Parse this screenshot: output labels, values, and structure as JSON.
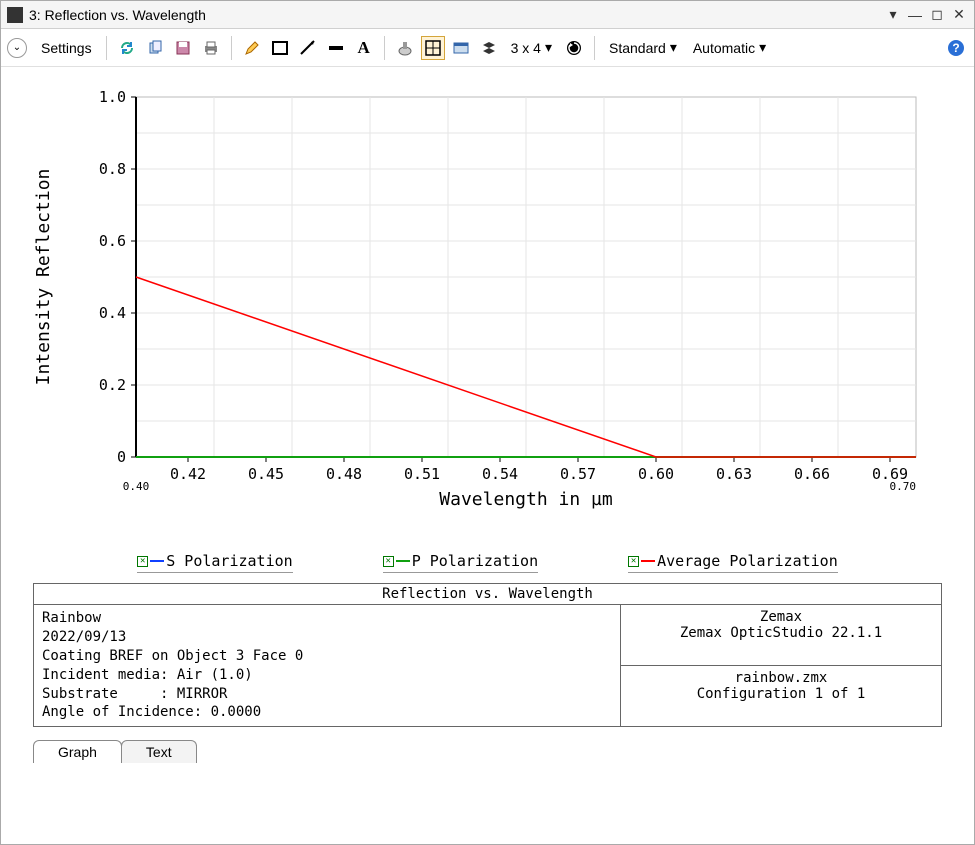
{
  "window": {
    "title": "3: Reflection vs. Wavelength"
  },
  "toolbar": {
    "settings_label": "Settings",
    "grid_label": "3 x 4",
    "standard_label": "Standard",
    "automatic_label": "Automatic"
  },
  "chart": {
    "type": "line",
    "xaxis_label": "Wavelength in µm",
    "yaxis_label": "Intensity Reflection",
    "xlim": [
      0.4,
      0.7
    ],
    "ylim": [
      0,
      1.0
    ],
    "xticks": [
      0.42,
      0.45,
      0.48,
      0.51,
      0.54,
      0.57,
      0.6,
      0.63,
      0.66,
      0.69
    ],
    "xtick_labels": [
      "0.42",
      "0.45",
      "0.48",
      "0.51",
      "0.54",
      "0.57",
      "0.60",
      "0.63",
      "0.66",
      "0.69"
    ],
    "x_start_label": "0.40",
    "x_end_label": "0.70",
    "yticks": [
      0,
      0.2,
      0.4,
      0.6,
      0.8,
      1.0
    ],
    "ytick_labels": [
      "0",
      "0.2",
      "0.4",
      "0.6",
      "0.8",
      "1.0"
    ],
    "grid_color": "#e5e5e5",
    "axis_color": "#000000",
    "background_color": "#ffffff",
    "series": {
      "s_pol": {
        "label": "S Polarization",
        "color": "#1040ff",
        "points": [
          [
            0.4,
            0.0
          ],
          [
            0.7,
            0.0
          ]
        ],
        "width": 2
      },
      "p_pol": {
        "label": "P Polarization",
        "color": "#10a010",
        "points": [
          [
            0.4,
            0.0
          ],
          [
            0.7,
            0.0
          ]
        ],
        "width": 2
      },
      "avg_pol": {
        "label": "Average Polarization",
        "color": "#ff0000",
        "points": [
          [
            0.4,
            0.5
          ],
          [
            0.6,
            0.0
          ],
          [
            0.7,
            0.0
          ]
        ],
        "width": 1.5
      }
    },
    "tick_fontsize": 15,
    "axis_fontsize": 18
  },
  "legend": {
    "items": [
      {
        "key": "s_pol",
        "label": "S Polarization",
        "color": "#1040ff",
        "checked": true
      },
      {
        "key": "p_pol",
        "label": "P Polarization",
        "color": "#10a010",
        "checked": true
      },
      {
        "key": "avg_pol",
        "label": "Average Polarization",
        "color": "#ff0000",
        "checked": true
      }
    ]
  },
  "info": {
    "title": "Reflection vs. Wavelength",
    "left_lines": [
      "Rainbow",
      "2022/09/13",
      "Coating BREF on Object 3 Face 0",
      "Incident media: Air (1.0)",
      "Substrate     : MIRROR",
      "Angle of Incidence: 0.0000"
    ],
    "right_top_lines": [
      "Zemax",
      "Zemax OpticStudio 22.1.1"
    ],
    "right_bot_lines": [
      "rainbow.zmx",
      "Configuration 1 of 1"
    ]
  },
  "tabs": {
    "items": [
      "Graph",
      "Text"
    ],
    "active": 0
  }
}
